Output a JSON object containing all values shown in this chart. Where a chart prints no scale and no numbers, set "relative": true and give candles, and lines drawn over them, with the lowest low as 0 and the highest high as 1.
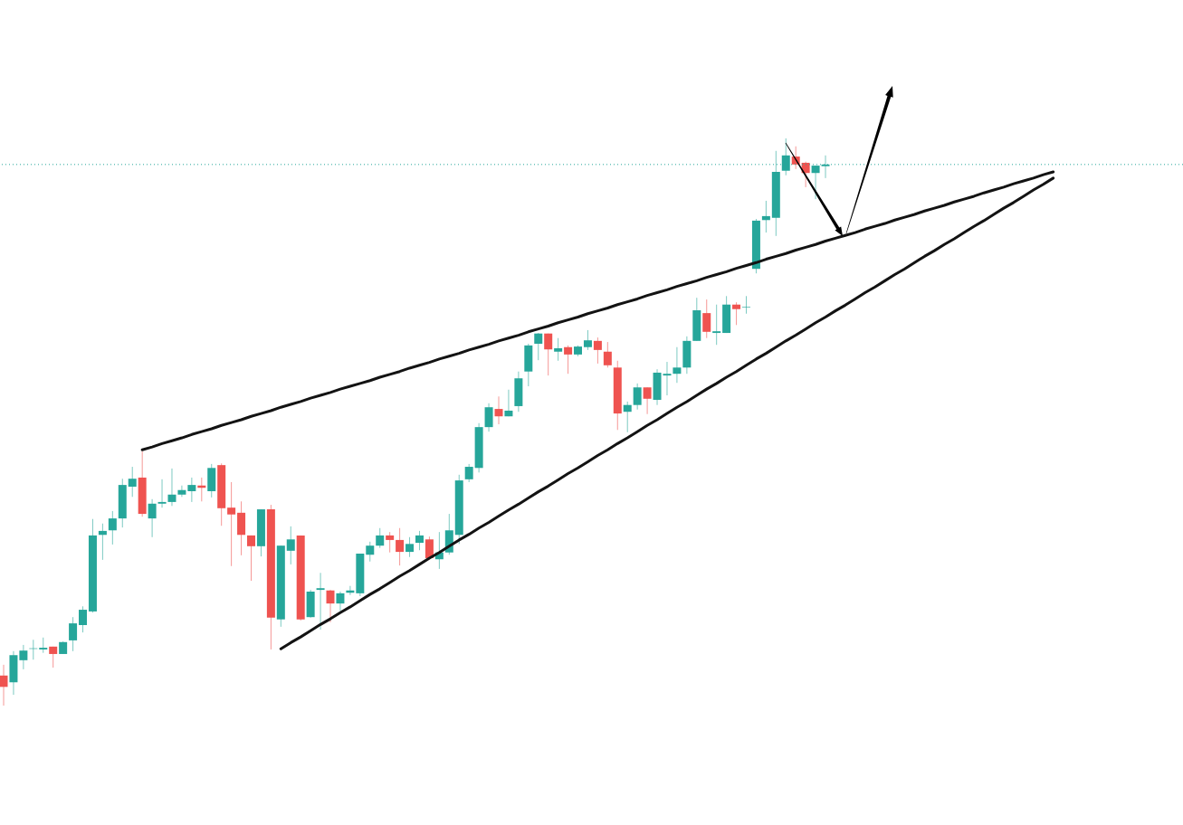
{
  "chart_data": {
    "type": "candlestick",
    "relative": true,
    "categories": [
      null,
      null,
      null,
      null,
      null,
      null,
      null,
      null,
      null,
      null,
      null,
      null,
      null,
      null,
      null,
      null,
      null,
      null,
      null,
      null,
      null,
      null,
      null,
      null,
      null,
      null,
      null,
      null,
      null,
      null,
      null,
      null,
      null,
      null,
      null,
      null,
      null,
      null,
      null,
      null,
      null,
      null,
      null,
      null,
      null,
      null,
      null,
      null,
      null,
      null,
      null,
      null,
      null,
      null,
      null,
      null,
      null,
      null,
      null,
      null,
      null,
      null,
      null,
      null,
      null,
      null,
      null,
      null,
      null,
      null,
      null,
      null,
      null,
      null,
      null,
      null,
      null,
      null,
      null,
      null,
      null,
      null,
      null,
      null,
      null,
      null,
      null,
      null,
      null,
      null,
      null,
      null,
      null,
      null,
      null,
      null,
      null,
      null,
      null,
      null,
      null,
      null,
      null,
      null,
      null,
      null,
      null
    ],
    "ohlc": [
      [
        0.053,
        0.072,
        0,
        0.033
      ],
      [
        0.041,
        0.096,
        0.019,
        0.089
      ],
      [
        0.08,
        0.107,
        0.064,
        0.097
      ],
      [
        0.1,
        0.116,
        0.081,
        0.101
      ],
      [
        0.099,
        0.12,
        0.093,
        0.102
      ],
      [
        0.104,
        0.104,
        0.067,
        0.091
      ],
      [
        0.091,
        0.113,
        0.091,
        0.112
      ],
      [
        0.115,
        0.156,
        0.096,
        0.145
      ],
      [
        0.142,
        0.175,
        0.129,
        0.169
      ],
      [
        0.166,
        0.329,
        0.164,
        0.3
      ],
      [
        0.301,
        0.321,
        0.257,
        0.308
      ],
      [
        0.309,
        0.343,
        0.284,
        0.33
      ],
      [
        0.33,
        0.4,
        0.314,
        0.389
      ],
      [
        0.386,
        0.421,
        0.368,
        0.4
      ],
      [
        0.402,
        0.448,
        0.333,
        0.338
      ],
      [
        0.33,
        0.364,
        0.297,
        0.356
      ],
      [
        0.356,
        0.399,
        0.349,
        0.359
      ],
      [
        0.359,
        0.418,
        0.352,
        0.372
      ],
      [
        0.372,
        0.388,
        0.368,
        0.38
      ],
      [
        0.378,
        0.402,
        0.359,
        0.389
      ],
      [
        0.388,
        0.402,
        0.36,
        0.384
      ],
      [
        0.378,
        0.426,
        0.367,
        0.419
      ],
      [
        0.424,
        0.427,
        0.317,
        0.348
      ],
      [
        0.349,
        0.394,
        0.246,
        0.337
      ],
      [
        0.34,
        0.36,
        0.265,
        0.301
      ],
      [
        0.3,
        0.3,
        0.22,
        0.281
      ],
      [
        0.281,
        0.346,
        0.263,
        0.346
      ],
      [
        0.346,
        0.354,
        0.099,
        0.155
      ],
      [
        0.152,
        0.282,
        0.139,
        0.282
      ],
      [
        0.273,
        0.316,
        0.249,
        0.293
      ],
      [
        0.3,
        0.3,
        0.15,
        0.152
      ],
      [
        0.156,
        0.204,
        0.155,
        0.201
      ],
      [
        0.204,
        0.234,
        0.134,
        0.207
      ],
      [
        0.203,
        0.204,
        0.147,
        0.18
      ],
      [
        0.18,
        0.201,
        0.167,
        0.198
      ],
      [
        0.199,
        0.211,
        0.195,
        0.203
      ],
      [
        0.198,
        0.268,
        0.193,
        0.268
      ],
      [
        0.266,
        0.289,
        0.254,
        0.282
      ],
      [
        0.282,
        0.313,
        0.278,
        0.3
      ],
      [
        0.3,
        0.306,
        0.27,
        0.292
      ],
      [
        0.292,
        0.313,
        0.247,
        0.271
      ],
      [
        0.271,
        0.297,
        0.262,
        0.285
      ],
      [
        0.287,
        0.308,
        0.274,
        0.3
      ],
      [
        0.293,
        0.298,
        0.258,
        0.26
      ],
      [
        0.258,
        0.306,
        0.241,
        0.27
      ],
      [
        0.27,
        0.338,
        0.266,
        0.309
      ],
      [
        0.301,
        0.407,
        0.285,
        0.397
      ],
      [
        0.399,
        0.426,
        0.394,
        0.421
      ],
      [
        0.419,
        0.498,
        0.411,
        0.491
      ],
      [
        0.491,
        0.533,
        0.483,
        0.526
      ],
      [
        0.523,
        0.545,
        0.496,
        0.51
      ],
      [
        0.51,
        0.557,
        0.51,
        0.52
      ],
      [
        0.528,
        0.589,
        0.518,
        0.577
      ],
      [
        0.589,
        0.638,
        0.563,
        0.635
      ],
      [
        0.638,
        0.657,
        0.609,
        0.656
      ],
      [
        0.656,
        0.656,
        0.582,
        0.628
      ],
      [
        0.624,
        0.648,
        0.608,
        0.63
      ],
      [
        0.632,
        0.635,
        0.585,
        0.619
      ],
      [
        0.619,
        0.635,
        0.616,
        0.633
      ],
      [
        0.632,
        0.662,
        0.627,
        0.644
      ],
      [
        0.643,
        0.649,
        0.603,
        0.627
      ],
      [
        0.624,
        0.641,
        0.596,
        0.6
      ],
      [
        0.596,
        0.608,
        0.486,
        0.515
      ],
      [
        0.518,
        0.536,
        0.482,
        0.53
      ],
      [
        0.53,
        0.568,
        0.522,
        0.561
      ],
      [
        0.561,
        0.561,
        0.514,
        0.541
      ],
      [
        0.539,
        0.593,
        0.53,
        0.587
      ],
      [
        0.582,
        0.606,
        0.547,
        0.585
      ],
      [
        0.585,
        0.632,
        0.569,
        0.596
      ],
      [
        0.596,
        0.651,
        0.585,
        0.643
      ],
      [
        0.643,
        0.719,
        0.643,
        0.697
      ],
      [
        0.692,
        0.716,
        0.648,
        0.659
      ],
      [
        0.657,
        0.707,
        0.636,
        0.66
      ],
      [
        0.657,
        0.722,
        0.657,
        0.707
      ],
      [
        0.707,
        0.711,
        0.671,
        0.699
      ],
      [
        0.702,
        0.722,
        0.691,
        0.703
      ],
      [
        0.77,
        0.858,
        0.762,
        0.855
      ],
      [
        0.856,
        0.89,
        0.834,
        0.863
      ],
      [
        0.86,
        0.978,
        0.828,
        0.941
      ],
      [
        0.943,
        1,
        0.935,
        0.97
      ],
      [
        0.968,
        0.986,
        0.946,
        0.954
      ],
      [
        0.957,
        0.959,
        0.914,
        0.939
      ],
      [
        0.939,
        0.952,
        0.893,
        0.952
      ],
      [
        0.951,
        0.97,
        0.93,
        0.954
      ],
      null,
      null,
      null,
      null,
      null,
      null,
      null,
      null,
      null,
      null,
      null,
      null,
      null,
      null,
      null,
      null,
      null,
      null,
      null,
      null,
      null,
      null,
      null
    ],
    "colors": [
      "#ef5350",
      "#26a69a",
      "#26a69a",
      "#26a69a",
      "#26a69a",
      "#ef5350",
      "#26a69a",
      "#26a69a",
      "#26a69a",
      "#26a69a",
      "#26a69a",
      "#26a69a",
      "#26a69a",
      "#26a69a",
      "#ef5350",
      "#26a69a",
      "#26a69a",
      "#26a69a",
      "#26a69a",
      "#26a69a",
      "#ef5350",
      "#26a69a",
      "#ef5350",
      "#ef5350",
      "#ef5350",
      "#ef5350",
      "#26a69a",
      "#ef5350",
      "#26a69a",
      "#26a69a",
      "#ef5350",
      "#26a69a",
      "#26a69a",
      "#ef5350",
      "#26a69a",
      "#26a69a",
      "#26a69a",
      "#26a69a",
      "#26a69a",
      "#ef5350",
      "#ef5350",
      "#26a69a",
      "#26a69a",
      "#ef5350",
      "#26a69a",
      "#26a69a",
      "#26a69a",
      "#26a69a",
      "#26a69a",
      "#26a69a",
      "#ef5350",
      "#26a69a",
      "#26a69a",
      "#26a69a",
      "#26a69a",
      "#ef5350",
      "#26a69a",
      "#ef5350",
      "#26a69a",
      "#26a69a",
      "#ef5350",
      "#ef5350",
      "#ef5350",
      "#26a69a",
      "#26a69a",
      "#ef5350",
      "#26a69a",
      "#26a69a",
      "#26a69a",
      "#26a69a",
      "#26a69a",
      "#ef5350",
      "#26a69a",
      "#26a69a",
      "#ef5350",
      "#26a69a",
      "#26a69a",
      "#26a69a",
      "#26a69a",
      "#26a69a",
      "#ef5350",
      "#ef5350",
      "#26a69a",
      "#26a69a",
      null,
      null,
      null,
      null,
      null,
      null,
      null,
      null,
      null,
      null,
      null,
      null,
      null,
      null,
      null,
      null,
      null,
      null,
      null,
      null,
      null,
      null,
      null
    ],
    "series": [
      {
        "type": "line",
        "color": "#131313",
        "values": [
          null,
          null,
          null,
          null,
          null,
          null,
          null,
          null,
          null,
          null,
          null,
          null,
          null,
          null,
          0.451,
          0.456,
          0.462,
          0.467,
          0.472,
          0.478,
          0.483,
          0.488,
          0.494,
          0.499,
          0.504,
          0.51,
          0.515,
          0.52,
          0.526,
          0.531,
          0.536,
          0.542,
          0.547,
          0.552,
          0.558,
          0.563,
          0.568,
          0.573,
          0.579,
          0.584,
          0.589,
          0.595,
          0.6,
          0.605,
          0.611,
          0.616,
          0.621,
          0.627,
          0.632,
          0.637,
          0.643,
          0.648,
          0.653,
          0.659,
          0.664,
          0.669,
          0.675,
          0.68,
          0.685,
          0.691,
          0.696,
          0.701,
          0.707,
          0.712,
          0.717,
          0.723,
          0.728,
          0.733,
          0.739,
          0.744,
          0.749,
          0.755,
          0.76,
          0.765,
          0.771,
          0.776,
          0.781,
          0.787,
          0.792,
          0.797,
          0.803,
          0.808,
          0.813,
          0.819,
          0.824,
          0.829,
          0.834,
          0.84,
          0.845,
          0.85,
          0.856,
          0.861,
          0.866,
          0.872,
          0.877,
          0.882,
          0.888,
          0.893,
          0.898,
          0.904,
          0.909,
          0.914,
          0.92,
          0.925,
          0.93,
          0.936,
          0.941
        ]
      },
      {
        "type": "line",
        "color": "#131313",
        "values": [
          null,
          null,
          null,
          null,
          null,
          null,
          null,
          null,
          null,
          null,
          null,
          null,
          null,
          null,
          null,
          null,
          null,
          null,
          null,
          null,
          null,
          null,
          null,
          null,
          null,
          null,
          null,
          null,
          0.1,
          0.111,
          0.121,
          0.132,
          0.143,
          0.153,
          0.164,
          0.174,
          0.185,
          0.196,
          0.206,
          0.217,
          0.228,
          0.238,
          0.249,
          0.26,
          0.27,
          0.281,
          0.292,
          0.302,
          0.313,
          0.323,
          0.334,
          0.345,
          0.355,
          0.366,
          0.377,
          0.387,
          0.398,
          0.409,
          0.419,
          0.43,
          0.441,
          0.451,
          0.462,
          0.472,
          0.483,
          0.494,
          0.504,
          0.515,
          0.526,
          0.536,
          0.547,
          0.558,
          0.568,
          0.579,
          0.589,
          0.6,
          0.611,
          0.621,
          0.632,
          0.643,
          0.653,
          0.664,
          0.675,
          0.685,
          0.696,
          0.706,
          0.717,
          0.728,
          0.738,
          0.749,
          0.76,
          0.77,
          0.781,
          0.792,
          0.802,
          0.813,
          0.823,
          0.834,
          0.845,
          0.855,
          0.866,
          0.877,
          0.887,
          0.898,
          0.909,
          0.919,
          0.93
        ]
      }
    ],
    "ref_lines": [
      {
        "axis": "y",
        "value": 0.954,
        "color": "#26a69a",
        "line_style": "dotted"
      }
    ]
  }
}
